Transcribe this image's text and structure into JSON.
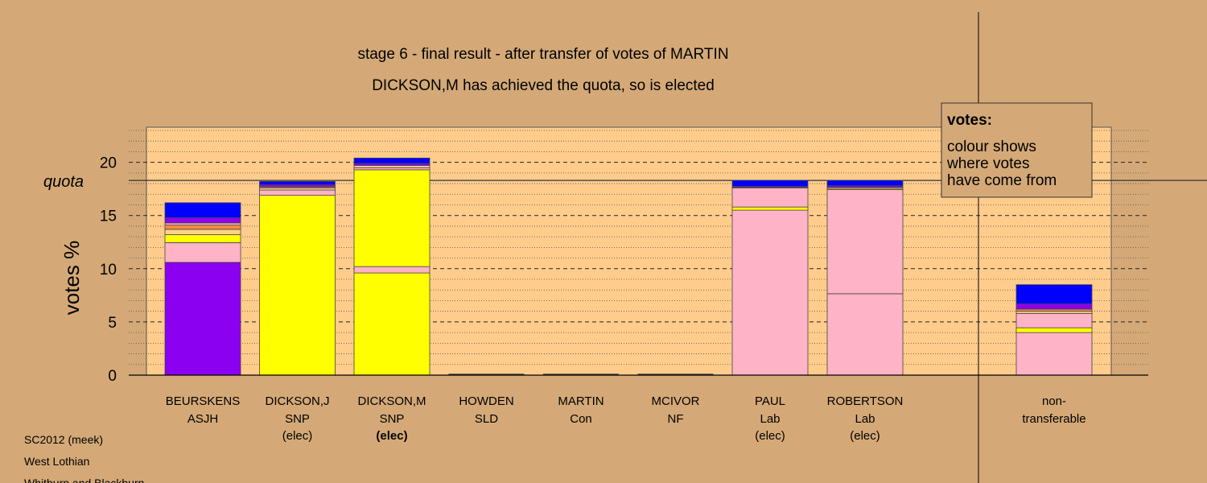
{
  "chart_data": {
    "type": "bar",
    "stacked": true,
    "title": "stage 6 - final result - after transfer of votes of MARTIN",
    "subtitle": "DICKSON,M has achieved the quota, so is elected",
    "ylabel": "votes %",
    "quota_label": "quota",
    "quota": 18.3,
    "ylim": [
      0,
      23.3
    ],
    "yticks": [
      0,
      5,
      10,
      15,
      20
    ],
    "grid": "dashed major, dotted minor",
    "categories": [
      {
        "name": "BEURSKENS",
        "party": "ASJH",
        "status": ""
      },
      {
        "name": "DICKSON,J",
        "party": "SNP",
        "status": "(elec)"
      },
      {
        "name": "DICKSON,M",
        "party": "SNP",
        "status": "(elec)",
        "status_bold": true
      },
      {
        "name": "HOWDEN",
        "party": "SLD",
        "status": ""
      },
      {
        "name": "MARTIN",
        "party": "Con",
        "status": ""
      },
      {
        "name": "MCIVOR",
        "party": "NF",
        "status": ""
      },
      {
        "name": "PAUL",
        "party": "Lab",
        "status": "(elec)"
      },
      {
        "name": "ROBERTSON",
        "party": "Lab",
        "status": "(elec)"
      },
      {
        "name": "non-",
        "party": "transferable",
        "status": ""
      }
    ],
    "stacks": [
      [
        {
          "color": "#8B00F0",
          "value": 10.6
        },
        {
          "color": "#FFB3C6",
          "value": 1.85
        },
        {
          "color": "#FFFF00",
          "value": 0.75
        },
        {
          "color": "#FFD28C",
          "value": 0.5
        },
        {
          "color": "#F58C3C",
          "value": 0.4
        },
        {
          "color": "#FFB3C6",
          "value": 0.2
        },
        {
          "color": "#8B00F0",
          "value": 0.5
        },
        {
          "color": "#0000FF",
          "value": 1.4
        }
      ],
      [
        {
          "color": "#FFFF00",
          "value": 16.9
        },
        {
          "color": "#FFB3C6",
          "value": 0.5
        },
        {
          "color": "#FFD28C",
          "value": 0.2
        },
        {
          "color": "#F58C3C",
          "value": 0.1
        },
        {
          "color": "#8B00F0",
          "value": 0.2
        },
        {
          "color": "#0000FF",
          "value": 0.3
        }
      ],
      [
        {
          "color": "#FFFF00",
          "value": 9.6
        },
        {
          "color": "#FFB3C6",
          "value": 0.6
        },
        {
          "color": "#FFFF00",
          "value": 9.1
        },
        {
          "color": "#FFB3C6",
          "value": 0.2
        },
        {
          "color": "#FFD28C",
          "value": 0.2
        },
        {
          "color": "#8B00F0",
          "value": 0.2
        },
        {
          "color": "#0000FF",
          "value": 0.5
        }
      ],
      [],
      [],
      [],
      [
        {
          "color": "#FFB3C6",
          "value": 15.5
        },
        {
          "color": "#FFFF00",
          "value": 0.3
        },
        {
          "color": "#FFB3C6",
          "value": 1.8
        },
        {
          "color": "#FFD28C",
          "value": 0.05
        },
        {
          "color": "#8B00F0",
          "value": 0.1
        },
        {
          "color": "#0000FF",
          "value": 0.55
        }
      ],
      [
        {
          "color": "#FFB3C6",
          "value": 7.65
        },
        {
          "color": "#FFB3C6",
          "value": 9.8
        },
        {
          "color": "#FFFF00",
          "value": 0.1
        },
        {
          "color": "#FFD28C",
          "value": 0.1
        },
        {
          "color": "#8B00F0",
          "value": 0.15
        },
        {
          "color": "#0000FF",
          "value": 0.5
        }
      ],
      [
        {
          "color": "#FFB3C6",
          "value": 4.0
        },
        {
          "color": "#FFFF00",
          "value": 0.45
        },
        {
          "color": "#FFB3C6",
          "value": 1.35
        },
        {
          "color": "#FFD28C",
          "value": 0.2
        },
        {
          "color": "#F58C3C",
          "value": 0.2
        },
        {
          "color": "#8B00F0",
          "value": 0.5
        },
        {
          "color": "#0000FF",
          "value": 1.8
        }
      ]
    ]
  },
  "legend": {
    "title": "votes:",
    "lines": [
      "colour shows",
      "where votes",
      "have come from"
    ]
  },
  "footer": {
    "lines": [
      "SC2012 (meek)",
      "West Lothian",
      "Whitburn and Blackburn"
    ]
  },
  "colors": {
    "background": "#D4A977",
    "plot_fill": "#FFCC8C",
    "ASJH": "#8B00F0",
    "SNP": "#FFFF00",
    "Lab": "#FFB3C6",
    "SLD": "#F58C3C",
    "Con": "#0000FF",
    "NF": "#FFD28C"
  }
}
